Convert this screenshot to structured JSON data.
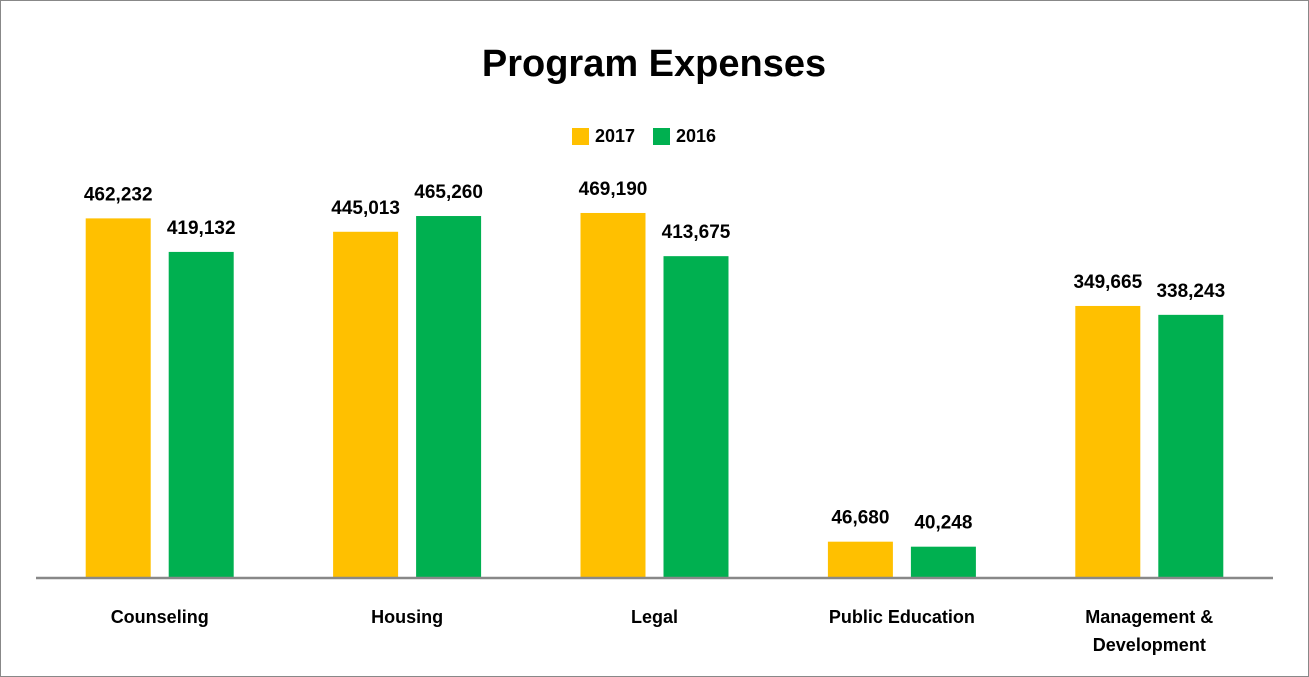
{
  "chart_data": {
    "type": "bar",
    "title": "Program Expenses",
    "categories": [
      "Counseling",
      "Housing",
      "Legal",
      "Public Education",
      "Management & Development"
    ],
    "series": [
      {
        "name": "2017",
        "color": "#FFC000",
        "values": [
          462232,
          445013,
          469190,
          46680,
          349665
        ],
        "value_labels": [
          "462,232",
          "445,013",
          "469,190",
          "46,680",
          "349,665"
        ]
      },
      {
        "name": "2016",
        "color": "#00B050",
        "values": [
          419132,
          465260,
          413675,
          40248,
          338243
        ],
        "value_labels": [
          "419,132",
          "465,260",
          "413,675",
          "40,248",
          "338,243"
        ]
      }
    ],
    "ylim": [
      0,
      500000
    ],
    "legend": "top"
  }
}
